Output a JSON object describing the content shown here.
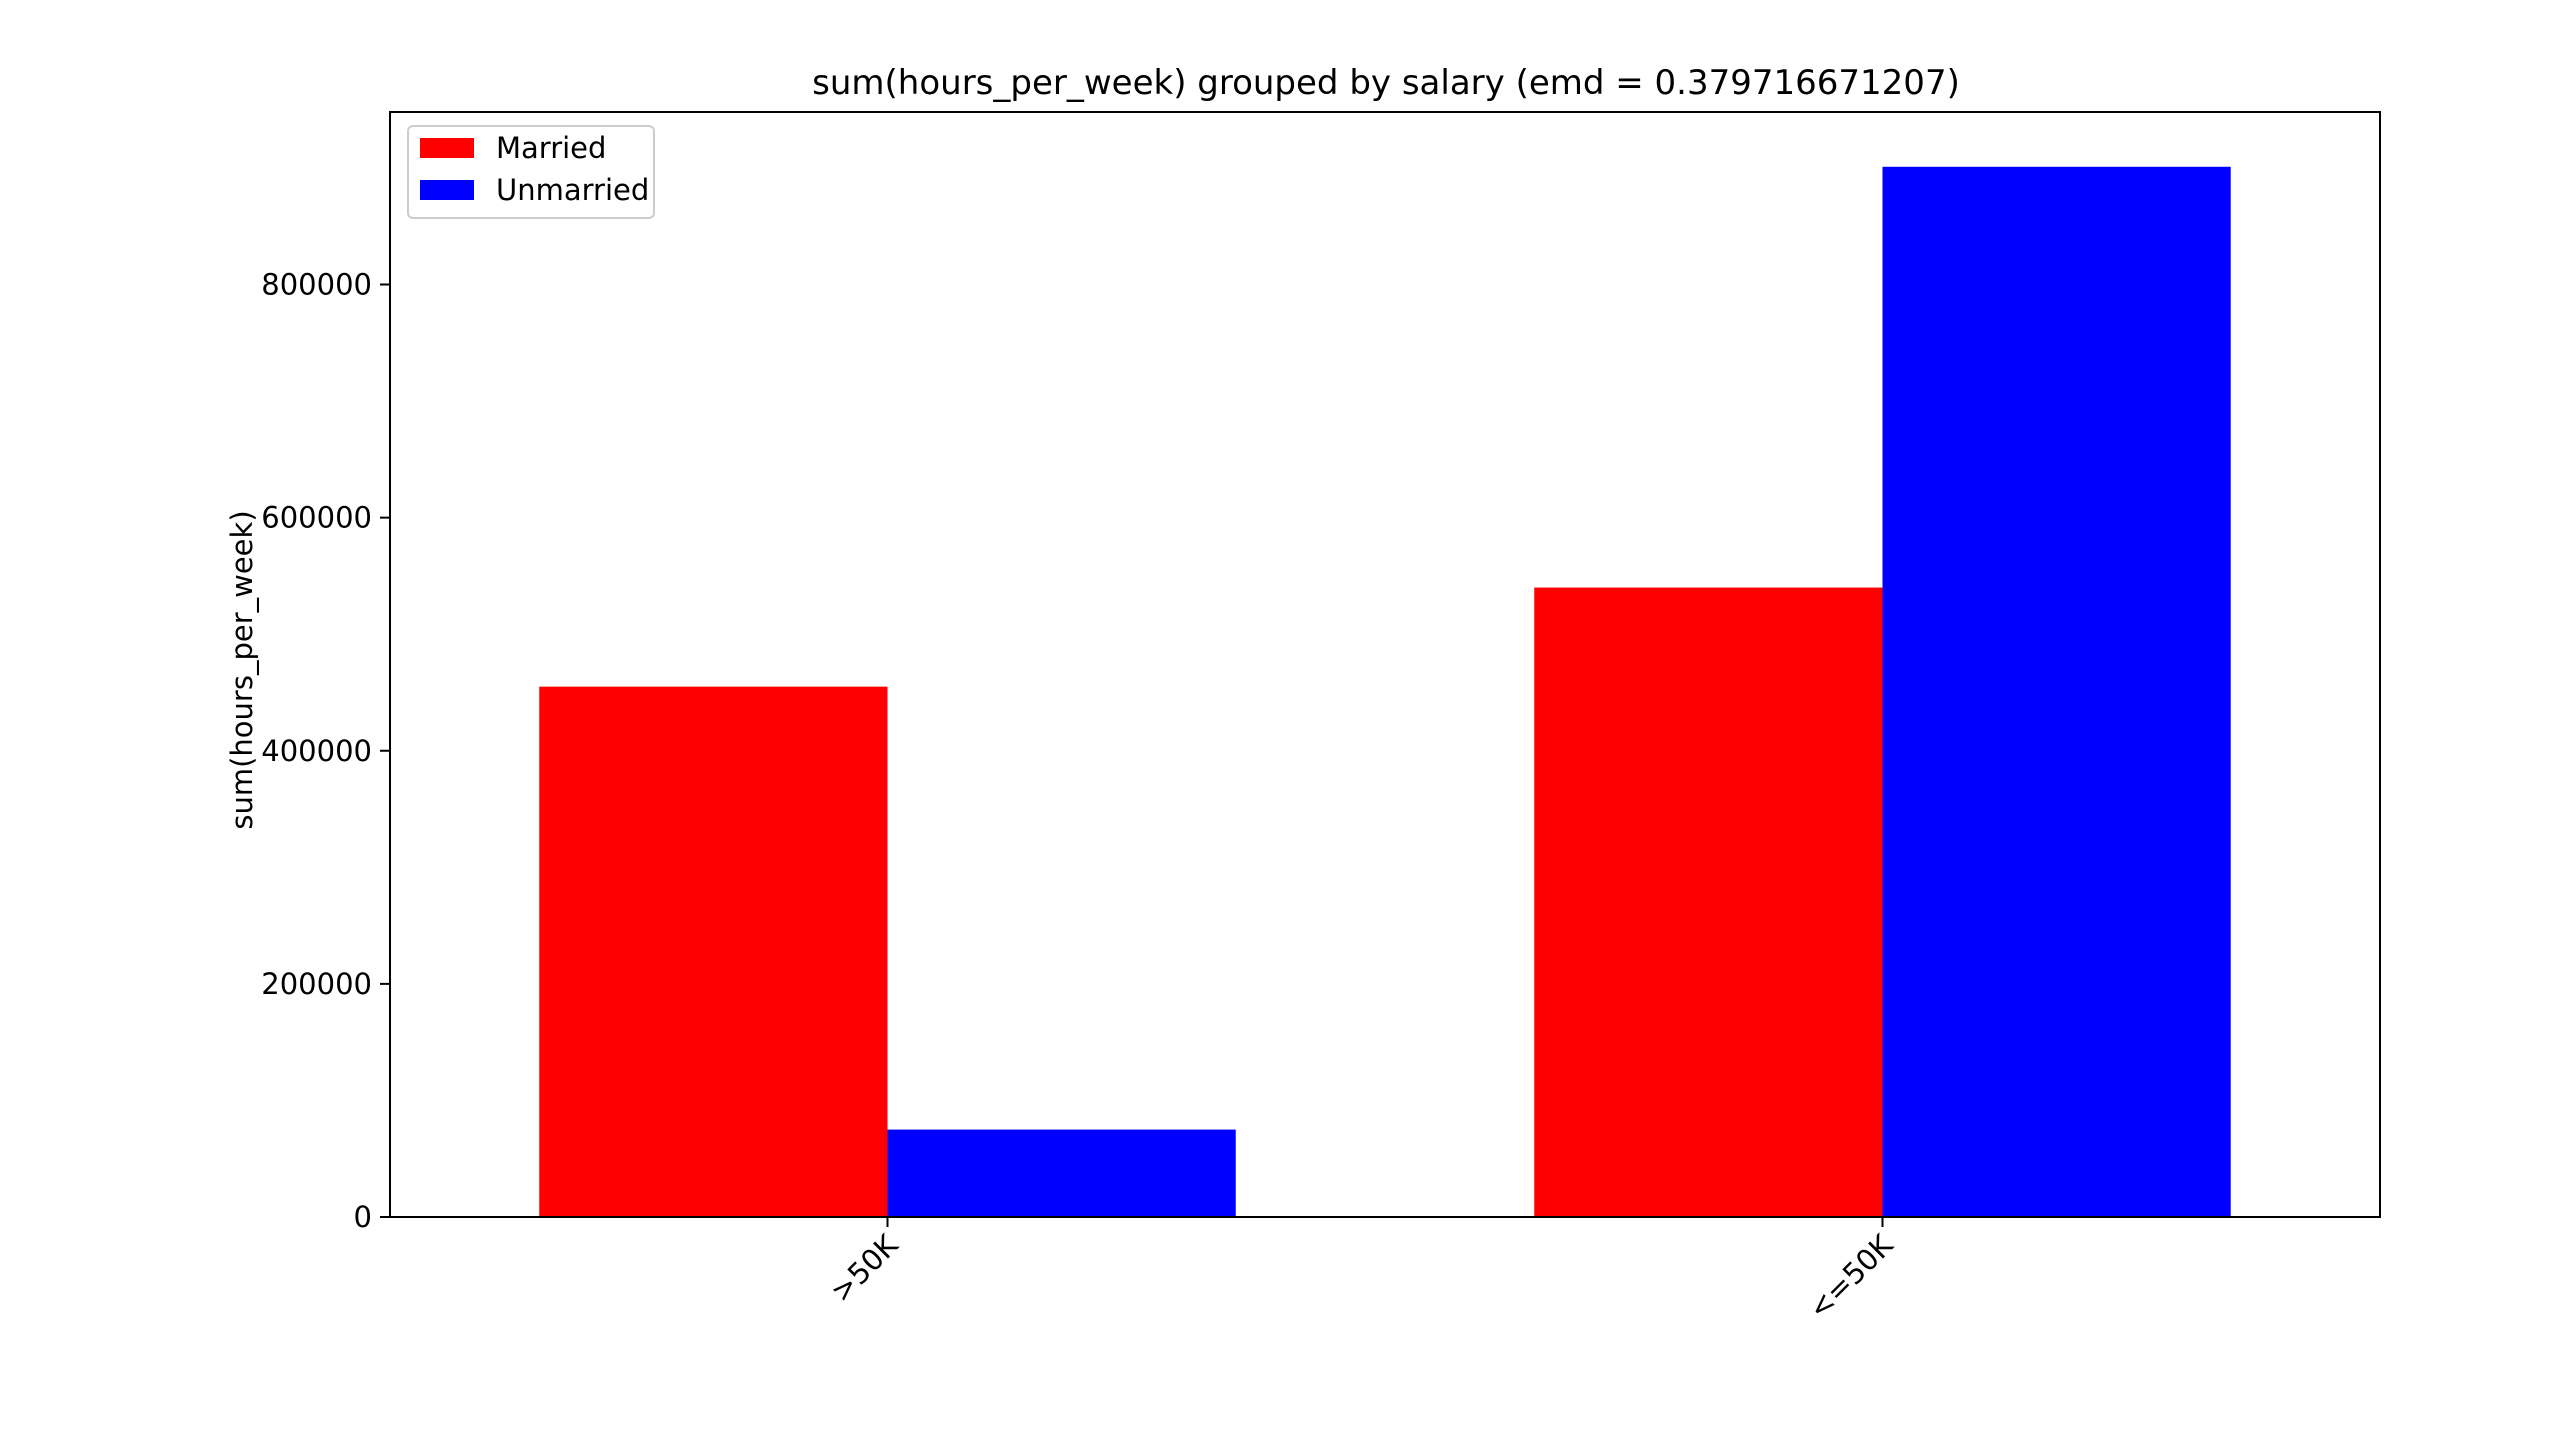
{
  "chart_data": {
    "type": "bar",
    "title": "sum(hours_per_week) grouped by salary (emd = 0.379716671207)",
    "xlabel": "",
    "ylabel": "sum(hours_per_week)",
    "categories": [
      ">50K",
      "<=50K"
    ],
    "series": [
      {
        "name": "Married",
        "color": "#ff0000",
        "values": [
          455000,
          540000
        ]
      },
      {
        "name": "Unmarried",
        "color": "#0000ff",
        "values": [
          75000,
          901000
        ]
      }
    ],
    "ylim": [
      0,
      948000
    ],
    "yticks": [
      0,
      200000,
      400000,
      600000,
      800000
    ],
    "ytick_labels": [
      "0",
      "200000",
      "400000",
      "600000",
      "800000"
    ],
    "grid": false,
    "legend_position": "top-left"
  }
}
